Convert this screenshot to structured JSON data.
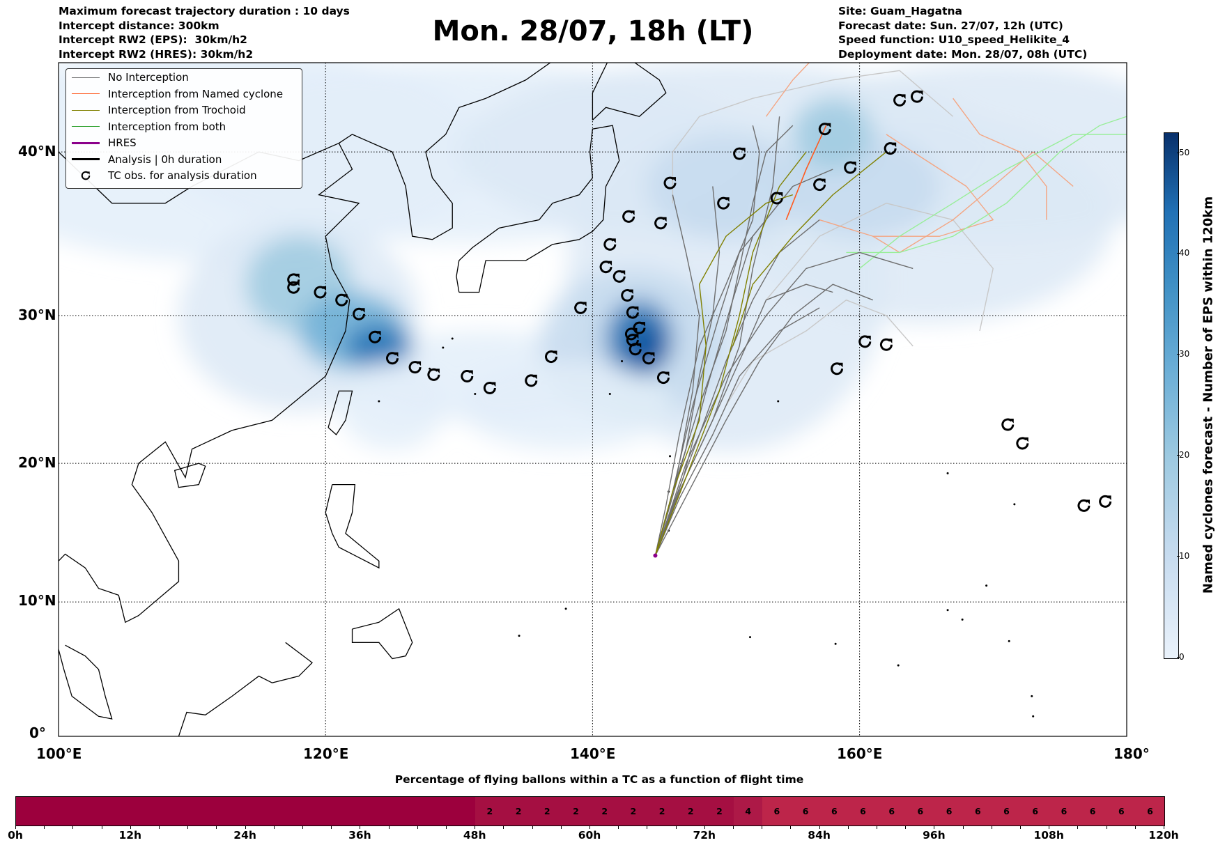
{
  "header": {
    "left": [
      "Maximum forecast trajectory duration : 10 days",
      "Intercept distance: 300km",
      "Intercept RW2 (EPS):  30km/h2",
      "Intercept RW2 (HRES): 30km/h2"
    ],
    "title": "Mon. 28/07, 18h (LT)",
    "right": [
      "Site: Guam_Hagatna",
      "Forecast date: Sun. 27/07, 12h (UTC)",
      "Speed function: U10_speed_Helikite_4",
      "Deployment date: Mon. 28/07, 08h (UTC)"
    ]
  },
  "legend": [
    {
      "label": "No Interception",
      "color": "#707070",
      "style": "line"
    },
    {
      "label": "Interception from Named cyclone",
      "color": "#ff5a1f",
      "style": "line"
    },
    {
      "label": "Interception from Trochoid",
      "color": "#808000",
      "style": "line"
    },
    {
      "label": "Interception from both",
      "color": "#2ca02c",
      "style": "line"
    },
    {
      "label": "HRES",
      "color": "#8b008b",
      "style": "thick"
    },
    {
      "label": "Analysis | 0h duration",
      "color": "#000000",
      "style": "thick"
    },
    {
      "label": "TC obs. for analysis duration",
      "color": "#000000",
      "style": "marker"
    }
  ],
  "chart_data": {
    "type": "map",
    "projection": "mercator",
    "lon_range": [
      100,
      180
    ],
    "lat_range": [
      0,
      45.5
    ],
    "lon_ticks": [
      "100°E",
      "120°E",
      "140°E",
      "160°E",
      "180°"
    ],
    "lat_ticks": [
      "0°",
      "10°N",
      "20°N",
      "30°N",
      "40°N"
    ],
    "launch_site": {
      "lon": 144.7,
      "lat": 13.4
    },
    "tc_observations": [
      [
        163.0,
        42.9
      ],
      [
        164.3,
        43.1
      ],
      [
        157.4,
        41.3
      ],
      [
        162.3,
        40.2
      ],
      [
        159.3,
        39.1
      ],
      [
        151.0,
        39.9
      ],
      [
        157.0,
        38.1
      ],
      [
        153.8,
        37.3
      ],
      [
        149.8,
        37.0
      ],
      [
        145.8,
        38.2
      ],
      [
        142.7,
        36.2
      ],
      [
        145.1,
        35.8
      ],
      [
        141.3,
        34.5
      ],
      [
        141.0,
        33.1
      ],
      [
        142.0,
        32.5
      ],
      [
        142.6,
        31.3
      ],
      [
        117.6,
        32.3
      ],
      [
        117.6,
        31.8
      ],
      [
        119.6,
        31.5
      ],
      [
        121.2,
        31.0
      ],
      [
        122.5,
        30.1
      ],
      [
        139.1,
        30.5
      ],
      [
        143.0,
        30.2
      ],
      [
        143.5,
        29.2
      ],
      [
        142.9,
        28.8
      ],
      [
        143.0,
        28.4
      ],
      [
        143.2,
        27.8
      ],
      [
        144.2,
        27.2
      ],
      [
        145.3,
        25.9
      ],
      [
        123.7,
        28.6
      ],
      [
        125.0,
        27.2
      ],
      [
        126.7,
        26.6
      ],
      [
        128.1,
        26.1
      ],
      [
        130.6,
        26.0
      ],
      [
        132.3,
        25.2
      ],
      [
        135.4,
        25.7
      ],
      [
        136.9,
        27.3
      ],
      [
        160.4,
        28.3
      ],
      [
        162.0,
        28.1
      ],
      [
        158.3,
        26.5
      ],
      [
        171.1,
        22.7
      ],
      [
        172.2,
        21.4
      ],
      [
        176.8,
        17.0
      ],
      [
        178.4,
        17.3
      ]
    ],
    "trajectories": [
      {
        "type": "none",
        "points": [
          [
            144.7,
            13.4
          ],
          [
            146,
            17
          ],
          [
            148,
            22
          ],
          [
            150,
            27
          ],
          [
            152,
            31
          ],
          [
            154,
            34
          ],
          [
            157,
            36
          ]
        ]
      },
      {
        "type": "none",
        "points": [
          [
            144.7,
            13.4
          ],
          [
            146.5,
            18
          ],
          [
            149,
            23
          ],
          [
            151,
            28
          ],
          [
            152,
            33
          ],
          [
            153.5,
            38
          ],
          [
            154,
            42
          ]
        ]
      },
      {
        "type": "none",
        "points": [
          [
            144.7,
            13.4
          ],
          [
            145.8,
            17
          ],
          [
            147,
            21
          ],
          [
            148,
            26
          ],
          [
            149,
            30
          ],
          [
            149.5,
            34
          ],
          [
            149,
            38
          ]
        ]
      },
      {
        "type": "none",
        "points": [
          [
            144.7,
            13.4
          ],
          [
            146,
            18
          ],
          [
            148,
            24
          ],
          [
            150,
            29
          ],
          [
            151,
            33
          ],
          [
            152,
            37
          ],
          [
            153,
            40
          ],
          [
            155,
            41.5
          ]
        ]
      },
      {
        "type": "none",
        "points": [
          [
            144.7,
            13.4
          ],
          [
            147,
            19
          ],
          [
            149.5,
            24
          ],
          [
            151.5,
            28
          ],
          [
            153,
            31
          ],
          [
            156,
            32
          ],
          [
            158,
            31.5
          ]
        ]
      },
      {
        "type": "none",
        "points": [
          [
            144.7,
            13.4
          ],
          [
            146.3,
            19
          ],
          [
            147.5,
            25
          ],
          [
            148,
            30
          ],
          [
            147,
            34
          ],
          [
            146,
            37.5
          ]
        ]
      },
      {
        "type": "none",
        "points": [
          [
            144.7,
            13.4
          ],
          [
            147.2,
            18
          ],
          [
            150,
            23
          ],
          [
            152.5,
            27
          ],
          [
            155,
            30
          ],
          [
            158,
            32
          ],
          [
            161,
            31
          ]
        ]
      },
      {
        "type": "none",
        "points": [
          [
            144.7,
            13.4
          ],
          [
            146.8,
            19
          ],
          [
            148.5,
            25
          ],
          [
            150.5,
            31
          ],
          [
            152,
            35
          ],
          [
            155,
            38
          ],
          [
            158,
            39
          ]
        ]
      },
      {
        "type": "none",
        "points": [
          [
            144.7,
            13.4
          ],
          [
            146,
            18
          ],
          [
            147.5,
            24
          ],
          [
            149.5,
            30
          ],
          [
            151,
            34
          ],
          [
            153,
            36
          ]
        ]
      },
      {
        "type": "none",
        "points": [
          [
            144.7,
            13.4
          ],
          [
            145.5,
            17
          ],
          [
            146.5,
            22
          ],
          [
            148,
            28
          ],
          [
            150,
            32
          ],
          [
            152,
            36
          ],
          [
            152.5,
            40
          ],
          [
            152,
            41.5
          ]
        ]
      },
      {
        "type": "none",
        "points": [
          [
            144.7,
            13.4
          ],
          [
            146.5,
            17.5
          ],
          [
            149,
            22
          ],
          [
            151,
            26
          ],
          [
            154,
            29
          ],
          [
            157,
            30.5
          ]
        ]
      },
      {
        "type": "none",
        "points": [
          [
            144.7,
            13.4
          ],
          [
            147,
            20
          ],
          [
            150,
            26
          ],
          [
            153,
            30
          ],
          [
            156,
            33
          ],
          [
            160,
            34
          ],
          [
            164,
            33
          ]
        ]
      },
      {
        "type": "light",
        "points": [
          [
            150,
            24
          ],
          [
            152,
            27
          ],
          [
            156,
            29
          ],
          [
            159,
            31
          ],
          [
            162,
            30
          ],
          [
            164,
            28
          ]
        ]
      },
      {
        "type": "light",
        "points": [
          [
            153,
            31
          ],
          [
            157,
            35
          ],
          [
            162,
            37
          ],
          [
            167,
            36
          ],
          [
            170,
            33
          ],
          [
            169,
            29
          ]
        ]
      },
      {
        "type": "light",
        "points": [
          [
            146,
            37
          ],
          [
            146,
            40
          ],
          [
            148,
            42
          ],
          [
            152,
            43
          ],
          [
            158,
            44
          ],
          [
            163,
            44.5
          ],
          [
            167,
            42
          ]
        ]
      },
      {
        "type": "trochoid",
        "points": [
          [
            144.7,
            13.4
          ],
          [
            146,
            18
          ],
          [
            148,
            23
          ],
          [
            148.5,
            28
          ],
          [
            148,
            32
          ],
          [
            150,
            35
          ],
          [
            153,
            37
          ],
          [
            155,
            37.5
          ]
        ]
      },
      {
        "type": "trochoid",
        "points": [
          [
            144.7,
            13.4
          ],
          [
            147,
            19
          ],
          [
            149.5,
            25
          ],
          [
            151,
            30
          ],
          [
            152,
            34
          ],
          [
            154,
            38
          ],
          [
            156,
            40
          ]
        ]
      },
      {
        "type": "trochoid",
        "points": [
          [
            150.5,
            28
          ],
          [
            152,
            32
          ],
          [
            155,
            35
          ],
          [
            158,
            37.5
          ],
          [
            162,
            40
          ]
        ]
      },
      {
        "type": "named",
        "points": [
          [
            154.5,
            36
          ],
          [
            156,
            39
          ],
          [
            157.5,
            41.5
          ]
        ]
      },
      {
        "type": "salmon",
        "points": [
          [
            157,
            36
          ],
          [
            161,
            35
          ],
          [
            166,
            35
          ],
          [
            170,
            36
          ],
          [
            168,
            38
          ],
          [
            164,
            40
          ],
          [
            162,
            41
          ]
        ]
      },
      {
        "type": "salmon",
        "points": [
          [
            153,
            42
          ],
          [
            155,
            44
          ],
          [
            157,
            45.5
          ]
        ]
      },
      {
        "type": "salmon",
        "points": [
          [
            161,
            35
          ],
          [
            163,
            34
          ],
          [
            167,
            36
          ],
          [
            170,
            38
          ],
          [
            173,
            40
          ],
          [
            176,
            38
          ]
        ]
      },
      {
        "type": "salmon",
        "points": [
          [
            167,
            43
          ],
          [
            169,
            41
          ],
          [
            172,
            40
          ],
          [
            174,
            38
          ],
          [
            174,
            36
          ]
        ]
      },
      {
        "type": "green",
        "points": [
          [
            159,
            34
          ],
          [
            163,
            34
          ],
          [
            167,
            35
          ],
          [
            171,
            37
          ],
          [
            175,
            40
          ],
          [
            178,
            41.5
          ],
          [
            180,
            42
          ]
        ]
      },
      {
        "type": "green",
        "points": [
          [
            160,
            33
          ],
          [
            163,
            35
          ],
          [
            167,
            37
          ],
          [
            171,
            39
          ],
          [
            176,
            41
          ],
          [
            180,
            41
          ]
        ]
      }
    ],
    "colorbar": {
      "label": "Named cyclones forecast - Number of EPS within 120km",
      "range": [
        0,
        52
      ],
      "ticks": [
        "0",
        "10",
        "20",
        "30",
        "40",
        "50"
      ]
    }
  },
  "flight_time_bar": {
    "title": "Percentage of flying ballons within a TC as a function of flight time",
    "step_hours": 3,
    "values": [
      0,
      0,
      0,
      0,
      0,
      0,
      0,
      0,
      0,
      0,
      0,
      0,
      0,
      0,
      0,
      0,
      2,
      2,
      2,
      2,
      2,
      2,
      2,
      2,
      2,
      4,
      6,
      6,
      6,
      6,
      6,
      6,
      6,
      6,
      6,
      6,
      6,
      6,
      6,
      6
    ],
    "tick_labels": [
      "0h",
      "12h",
      "24h",
      "36h",
      "48h",
      "60h",
      "72h",
      "84h",
      "96h",
      "108h",
      "120h"
    ]
  }
}
